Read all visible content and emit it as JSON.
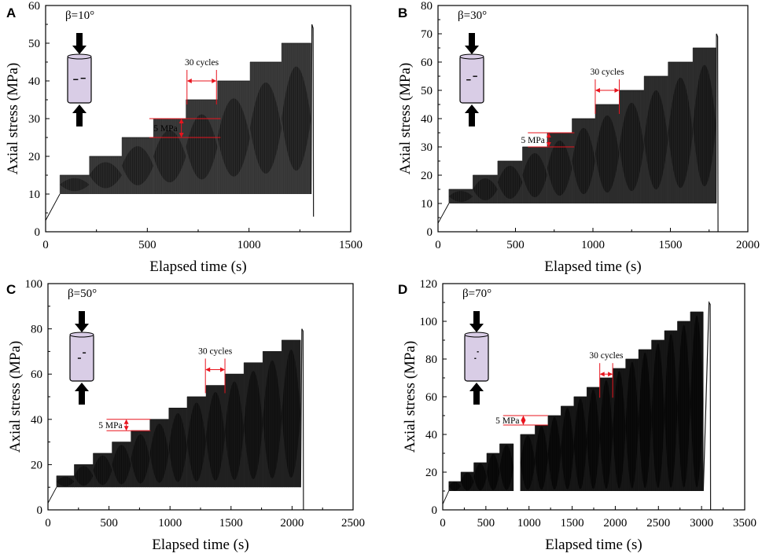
{
  "figure": {
    "colors": {
      "cycle_fill": "#4a4a4a",
      "cycle_dark": "#111111",
      "annotation": "#e8141e",
      "specimen_fill": "#d9cde6",
      "arrow": "#000000"
    },
    "annotation_labels": {
      "cycles": "30 cycles",
      "step": "5 MPa"
    }
  },
  "chart_data": [
    {
      "type": "area",
      "panel_label": "A",
      "title": "β=10°",
      "xlabel": "Elapsed time (s)",
      "ylabel": "Axial stress (MPa)",
      "xlim": [
        0,
        1500
      ],
      "ylim": [
        0,
        60
      ],
      "xticks": [
        0,
        500,
        1000,
        1500
      ],
      "yticks": [
        0,
        10,
        20,
        30,
        40,
        50,
        60
      ],
      "valley_stress": 10,
      "darkness": 0.55,
      "loading_stages": [
        {
          "start": 70,
          "end": 215,
          "peak": 15
        },
        {
          "start": 215,
          "end": 375,
          "peak": 20
        },
        {
          "start": 375,
          "end": 530,
          "peak": 25
        },
        {
          "start": 530,
          "end": 690,
          "peak": 30
        },
        {
          "start": 690,
          "end": 845,
          "peak": 35
        },
        {
          "start": 845,
          "end": 1005,
          "peak": 40
        },
        {
          "start": 1005,
          "end": 1160,
          "peak": 45
        },
        {
          "start": 1160,
          "end": 1305,
          "peak": 50
        }
      ],
      "failure": {
        "time": 1315,
        "peak_stress": 55,
        "final_stress": 4
      },
      "step_annotation": {
        "label": "5 MPa",
        "from": 25,
        "to": 30,
        "x_start": 510,
        "x_end": 860
      },
      "cycles_annotation": {
        "label": "30 cycles",
        "x_start": 695,
        "x_end": 840,
        "y": 40
      }
    },
    {
      "type": "area",
      "panel_label": "B",
      "title": "β=30°",
      "xlabel": "Elapsed time (s)",
      "ylabel": "Axial stress (MPa)",
      "xlim": [
        0,
        2000
      ],
      "ylim": [
        0,
        80
      ],
      "xticks": [
        0,
        500,
        1000,
        1500,
        2000
      ],
      "yticks": [
        0,
        10,
        20,
        30,
        40,
        50,
        60,
        70,
        80
      ],
      "valley_stress": 10,
      "darkness": 0.7,
      "loading_stages": [
        {
          "start": 70,
          "end": 225,
          "peak": 15
        },
        {
          "start": 225,
          "end": 385,
          "peak": 20
        },
        {
          "start": 385,
          "end": 545,
          "peak": 25
        },
        {
          "start": 545,
          "end": 705,
          "peak": 30
        },
        {
          "start": 705,
          "end": 865,
          "peak": 35
        },
        {
          "start": 865,
          "end": 1015,
          "peak": 40
        },
        {
          "start": 1015,
          "end": 1170,
          "peak": 45
        },
        {
          "start": 1170,
          "end": 1330,
          "peak": 50
        },
        {
          "start": 1330,
          "end": 1485,
          "peak": 55
        },
        {
          "start": 1485,
          "end": 1645,
          "peak": 60
        },
        {
          "start": 1645,
          "end": 1795,
          "peak": 65
        }
      ],
      "failure": {
        "time": 1805,
        "peak_stress": 70,
        "final_stress": 0
      },
      "step_annotation": {
        "label": "5 MPa",
        "from": 30,
        "to": 35,
        "x_start": 580,
        "x_end": 880
      },
      "cycles_annotation": {
        "label": "30 cycles",
        "x_start": 1015,
        "x_end": 1170,
        "y": 50
      }
    },
    {
      "type": "area",
      "panel_label": "C",
      "title": "β=50°",
      "xlabel": "Elapsed time (s)",
      "ylabel": "Axial stress (MPa)",
      "xlim": [
        0,
        2500
      ],
      "ylim": [
        0,
        100
      ],
      "xticks": [
        0,
        500,
        1000,
        1500,
        2000,
        2500
      ],
      "yticks": [
        0,
        20,
        40,
        60,
        80,
        100
      ],
      "valley_stress": 10,
      "darkness": 0.85,
      "loading_stages": [
        {
          "start": 70,
          "end": 215,
          "peak": 15
        },
        {
          "start": 215,
          "end": 370,
          "peak": 20
        },
        {
          "start": 370,
          "end": 525,
          "peak": 25
        },
        {
          "start": 525,
          "end": 680,
          "peak": 30
        },
        {
          "start": 680,
          "end": 835,
          "peak": 35
        },
        {
          "start": 835,
          "end": 990,
          "peak": 40
        },
        {
          "start": 990,
          "end": 1140,
          "peak": 45
        },
        {
          "start": 1140,
          "end": 1295,
          "peak": 50
        },
        {
          "start": 1295,
          "end": 1450,
          "peak": 55
        },
        {
          "start": 1450,
          "end": 1605,
          "peak": 60
        },
        {
          "start": 1605,
          "end": 1760,
          "peak": 65
        },
        {
          "start": 1760,
          "end": 1915,
          "peak": 70
        },
        {
          "start": 1915,
          "end": 2070,
          "peak": 75
        }
      ],
      "failure": {
        "time": 2090,
        "peak_stress": 80,
        "final_stress": 0
      },
      "step_annotation": {
        "label": "5 MPa",
        "from": 35,
        "to": 40,
        "x_start": 480,
        "x_end": 840
      },
      "cycles_annotation": {
        "label": "30 cycles",
        "x_start": 1290,
        "x_end": 1450,
        "y": 62
      }
    },
    {
      "type": "area",
      "panel_label": "D",
      "title": "β=70°",
      "xlabel": "Elapsed time (s)",
      "ylabel": "Axial stress (MPa)",
      "xlim": [
        0,
        3500
      ],
      "ylim": [
        0,
        120
      ],
      "xticks": [
        0,
        500,
        1000,
        1500,
        2000,
        2500,
        3000,
        3500
      ],
      "yticks": [
        0,
        20,
        40,
        60,
        80,
        100,
        120
      ],
      "valley_stress": 10,
      "darkness": 1.0,
      "loading_stages": [
        {
          "start": 70,
          "end": 210,
          "peak": 15
        },
        {
          "start": 210,
          "end": 360,
          "peak": 20
        },
        {
          "start": 360,
          "end": 510,
          "peak": 25
        },
        {
          "start": 510,
          "end": 660,
          "peak": 30
        },
        {
          "start": 660,
          "end": 820,
          "peak": 35
        },
        {
          "start": 900,
          "end": 1070,
          "peak": 40
        },
        {
          "start": 1070,
          "end": 1220,
          "peak": 45
        },
        {
          "start": 1220,
          "end": 1370,
          "peak": 50
        },
        {
          "start": 1370,
          "end": 1520,
          "peak": 55
        },
        {
          "start": 1520,
          "end": 1670,
          "peak": 60
        },
        {
          "start": 1670,
          "end": 1820,
          "peak": 65
        },
        {
          "start": 1820,
          "end": 1970,
          "peak": 70
        },
        {
          "start": 1970,
          "end": 2120,
          "peak": 75
        },
        {
          "start": 2120,
          "end": 2270,
          "peak": 80
        },
        {
          "start": 2270,
          "end": 2420,
          "peak": 85
        },
        {
          "start": 2420,
          "end": 2570,
          "peak": 90
        },
        {
          "start": 2570,
          "end": 2720,
          "peak": 95
        },
        {
          "start": 2720,
          "end": 2870,
          "peak": 100
        },
        {
          "start": 2870,
          "end": 3020,
          "peak": 105
        }
      ],
      "failure": {
        "time": 3100,
        "peak_stress": 110,
        "final_stress": 0
      },
      "step_annotation": {
        "label": "5 MPa",
        "from": 45,
        "to": 50,
        "x_start": 700,
        "x_end": 1220
      },
      "cycles_annotation": {
        "label": "30 cycles",
        "x_start": 1820,
        "x_end": 1970,
        "y": 72
      }
    }
  ]
}
